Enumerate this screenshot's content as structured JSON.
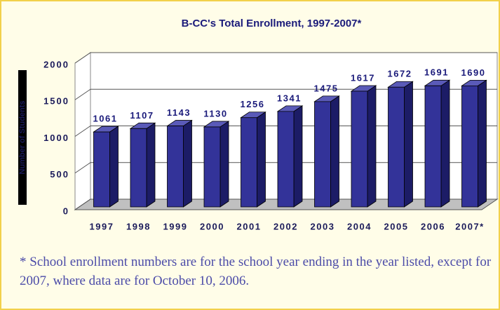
{
  "chart_data": {
    "type": "bar3d",
    "title": "B-CC's Total Enrollment, 1997-2007*",
    "y_label": "Number of Students",
    "categories": [
      "1997",
      "1998",
      "1999",
      "2000",
      "2001",
      "2002",
      "2003",
      "2004",
      "2005",
      "2006",
      "2007*"
    ],
    "values": [
      1061,
      1107,
      1143,
      1130,
      1256,
      1341,
      1475,
      1617,
      1672,
      1691,
      1690
    ],
    "color": "#333399",
    "ylim": [
      0,
      2000
    ],
    "yticks": [
      0,
      500,
      1000,
      1500,
      2000
    ],
    "grid": true,
    "footnote": "* School enrollment numbers are for the school year ending in the year listed, except for 2007, where data are for October 10, 2006."
  }
}
